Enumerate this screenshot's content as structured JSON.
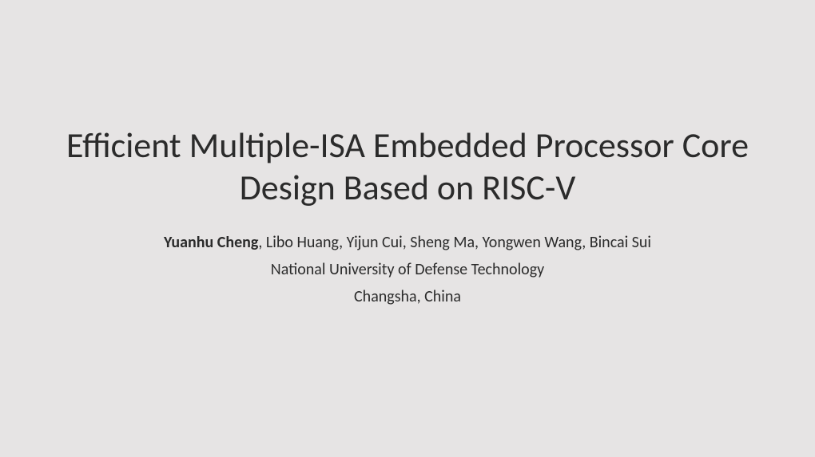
{
  "slide": {
    "title": "Efficient Multiple-ISA Embedded Processor Core Design Based on RISC-V",
    "primary_author": "Yuanhu Cheng",
    "other_authors": ", Libo Huang, Yijun Cui, Sheng Ma, Yongwen Wang, Bincai Sui",
    "affiliation": "National University of Defense Technology",
    "location": "Changsha, China",
    "background_color": "#e6e4e4",
    "text_color": "#2b2b2b",
    "title_fontsize": 44,
    "body_fontsize": 20
  }
}
